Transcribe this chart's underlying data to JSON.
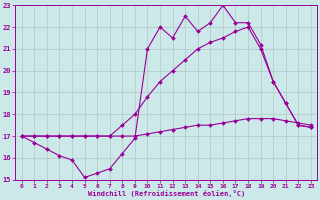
{
  "xlabel": "Windchill (Refroidissement éolien,°C)",
  "background_color": "#cce8e8",
  "grid_color": "#b0c8c8",
  "line_color": "#990099",
  "xlim": [
    -0.5,
    23.5
  ],
  "ylim": [
    15,
    23
  ],
  "yticks": [
    15,
    16,
    17,
    18,
    19,
    20,
    21,
    22,
    23
  ],
  "xticks": [
    0,
    1,
    2,
    3,
    4,
    5,
    6,
    7,
    8,
    9,
    10,
    11,
    12,
    13,
    14,
    15,
    16,
    17,
    18,
    19,
    20,
    21,
    22,
    23
  ],
  "line1_x": [
    0,
    1,
    2,
    3,
    4,
    5,
    6,
    7,
    8,
    9,
    10,
    11,
    12,
    13,
    14,
    15,
    16,
    17,
    18,
    19,
    20,
    21,
    22,
    23
  ],
  "line1_y": [
    17.0,
    17.0,
    17.0,
    17.0,
    17.0,
    17.0,
    17.0,
    17.0,
    17.0,
    17.0,
    17.1,
    17.2,
    17.3,
    17.4,
    17.5,
    17.5,
    17.6,
    17.7,
    17.8,
    17.8,
    17.8,
    17.7,
    17.6,
    17.5
  ],
  "line2_x": [
    0,
    1,
    2,
    3,
    4,
    5,
    6,
    7,
    8,
    9,
    10,
    11,
    12,
    13,
    14,
    15,
    16,
    17,
    18,
    19,
    20,
    21,
    22,
    23
  ],
  "line2_y": [
    17.0,
    17.0,
    17.0,
    17.0,
    17.0,
    17.0,
    17.0,
    17.0,
    17.5,
    18.0,
    18.8,
    19.5,
    20.0,
    20.5,
    21.0,
    21.3,
    21.5,
    21.8,
    22.0,
    21.0,
    19.5,
    18.5,
    17.5,
    17.4
  ],
  "line3_x": [
    0,
    1,
    2,
    3,
    4,
    5,
    6,
    7,
    8,
    9,
    10,
    11,
    12,
    13,
    14,
    15,
    16,
    17,
    18,
    19,
    20,
    21,
    22,
    23
  ],
  "line3_y": [
    17.0,
    16.7,
    16.4,
    16.1,
    15.9,
    15.1,
    15.3,
    15.5,
    16.2,
    16.9,
    21.0,
    22.0,
    21.5,
    22.5,
    21.8,
    22.2,
    23.0,
    22.2,
    22.2,
    21.2,
    19.5,
    18.5,
    17.5,
    17.4
  ]
}
